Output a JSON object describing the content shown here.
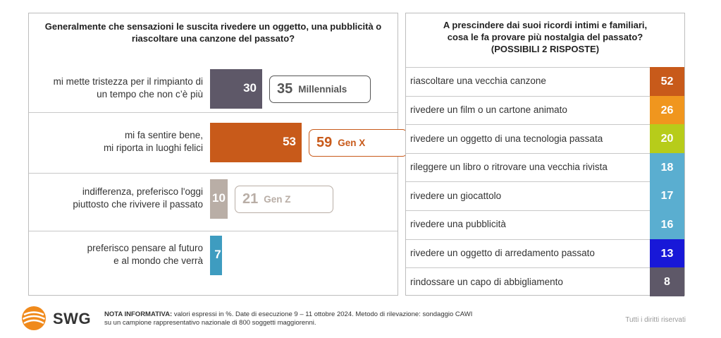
{
  "left": {
    "title": "Generalmente che sensazioni le suscita rivedere un oggetto, una pubblicità o riascoltare una canzone del passato?",
    "rows": [
      {
        "label_line1": "mi mette tristezza per il rimpianto di",
        "label_line2": "un tempo che non c’è più",
        "value": 30,
        "value_text": "30",
        "color": "#5e5868",
        "segment_value": "35",
        "segment_label": "Millennials",
        "segment_color": "#555555"
      },
      {
        "label_line1": "mi fa sentire bene,",
        "label_line2": "mi riporta in luoghi felici",
        "value": 53,
        "value_text": "53",
        "color": "#c85a1a",
        "segment_value": "59",
        "segment_label": "Gen X",
        "segment_color": "#c85a1a"
      },
      {
        "label_line1": "indifferenza, preferisco l'oggi",
        "label_line2": "piuttosto che rivivere il passato",
        "value": 10,
        "value_text": "10",
        "color": "#b9aea6",
        "segment_value": "21",
        "segment_label": "Gen Z",
        "segment_color": "#b9aea6"
      },
      {
        "label_line1": "preferisco pensare al futuro",
        "label_line2": "e al mondo che verrà",
        "value": 7,
        "value_text": "7",
        "color": "#3e9cc0",
        "segment_value": null,
        "segment_label": null,
        "segment_color": null
      }
    ]
  },
  "right": {
    "title_line1": "A prescindere dai suoi ricordi intimi e familiari,",
    "title_line2": "cosa le fa provare più nostalgia del passato?",
    "title_line3": "(POSSIBILI 2 RISPOSTE)",
    "rows": [
      {
        "label": "riascoltare una vecchia canzone",
        "value": "52",
        "color": "#c85a1a"
      },
      {
        "label": "rivedere un film o un cartone animato",
        "value": "26",
        "color": "#f0961e"
      },
      {
        "label": "rivedere un oggetto di una tecnologia passata",
        "value": "20",
        "color": "#b7cc1a"
      },
      {
        "label": "rileggere un libro o ritrovare una vecchia rivista",
        "value": "18",
        "color": "#5aaed0"
      },
      {
        "label": "rivedere un giocattolo",
        "value": "17",
        "color": "#5aaed0"
      },
      {
        "label": "rivedere una pubblicità",
        "value": "16",
        "color": "#5aaed0"
      },
      {
        "label": "rivedere un oggetto di arredamento passato",
        "value": "13",
        "color": "#1818d8"
      },
      {
        "label": "rindossare un capo di abbigliamento",
        "value": "8",
        "color": "#5e5868"
      }
    ]
  },
  "footer": {
    "brand": "SWG",
    "note_bold": "NOTA INFORMATIVA:",
    "note_line1": " valori espressi in %. Date di esecuzione 9 – 11 ottobre 2024. Metodo di rilevazione: sondaggio CAWI",
    "note_line2": "su un campione rappresentativo nazionale di 800 soggetti maggiorenni.",
    "rights": "Tutti i diritti riservati"
  },
  "chart_data": [
    {
      "type": "bar",
      "title": "Generalmente che sensazioni le suscita rivedere un oggetto, una pubblicità o riascoltare una canzone del passato?",
      "categories": [
        "mi mette tristezza per il rimpianto di un tempo che non c’è più",
        "mi fa sentire bene, mi riporta in luoghi felici",
        "indifferenza, preferisco l'oggi piuttosto che rivivere il passato",
        "preferisco pensare al futuro e al mondo che verrà"
      ],
      "series": [
        {
          "name": "Totale",
          "values": [
            30,
            53,
            10,
            7
          ]
        }
      ],
      "annotations": [
        {
          "category": "mi mette tristezza per il rimpianto di un tempo che non c’è più",
          "segment": "Millennials",
          "value": 35
        },
        {
          "category": "mi fa sentire bene, mi riporta in luoghi felici",
          "segment": "Gen X",
          "value": 59
        },
        {
          "category": "indifferenza, preferisco l'oggi piuttosto che rivivere il passato",
          "segment": "Gen Z",
          "value": 21
        }
      ],
      "unit": "%"
    },
    {
      "type": "table",
      "title": "A prescindere dai suoi ricordi intimi e familiari, cosa le fa provare più nostalgia del passato? (POSSIBILI 2 RISPOSTE)",
      "categories": [
        "riascoltare una vecchia canzone",
        "rivedere un film o un cartone animato",
        "rivedere un oggetto di una tecnologia passata",
        "rileggere un libro o ritrovare una vecchia rivista",
        "rivedere un giocattolo",
        "rivedere una pubblicità",
        "rivedere un oggetto di arredamento passato",
        "rindossare un capo di abbigliamento"
      ],
      "values": [
        52,
        26,
        20,
        18,
        17,
        16,
        13,
        8
      ],
      "unit": "%"
    }
  ]
}
